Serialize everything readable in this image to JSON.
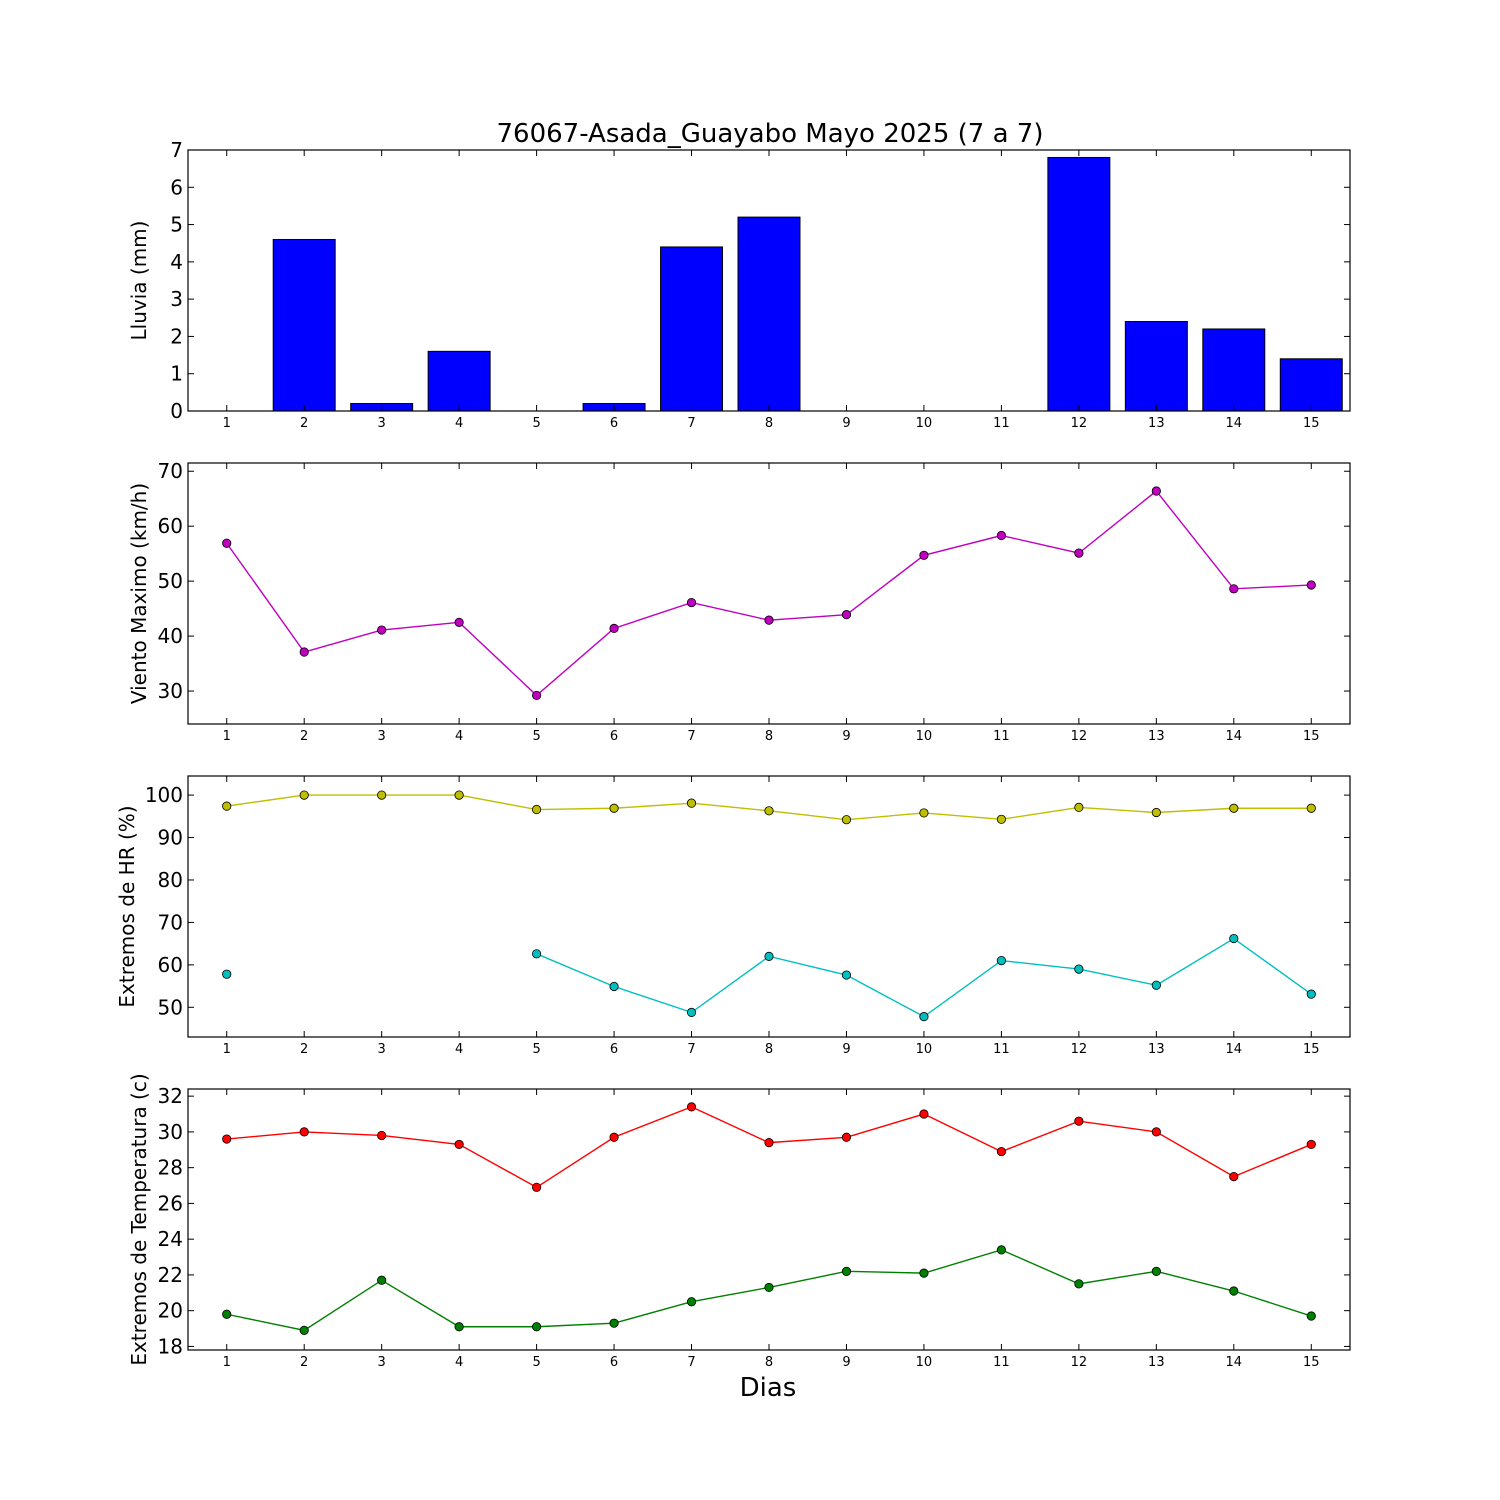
{
  "figure": {
    "title": "76067-Asada_Guayabo Mayo 2025  (7 a 7)",
    "xlabel": "Dias"
  },
  "chart_data": [
    {
      "type": "bar",
      "ylabel": "Lluvia (mm)",
      "categories": [
        1,
        2,
        3,
        4,
        5,
        6,
        7,
        8,
        9,
        10,
        11,
        12,
        13,
        14,
        15
      ],
      "values": [
        0,
        4.6,
        0.2,
        1.6,
        0,
        0.2,
        4.4,
        5.2,
        0,
        0,
        0,
        6.8,
        2.4,
        2.2,
        1.4
      ],
      "ylim": [
        0,
        7
      ],
      "yticks": [
        0,
        1,
        2,
        3,
        4,
        5,
        6,
        7
      ],
      "color": "#0000ff"
    },
    {
      "type": "line",
      "ylabel": "Viento Maximo (km/h)",
      "x": [
        1,
        2,
        3,
        4,
        5,
        6,
        7,
        8,
        9,
        10,
        11,
        12,
        13,
        14,
        15
      ],
      "series": [
        {
          "values": [
            56.9,
            37.1,
            41.1,
            42.5,
            29.2,
            41.4,
            46.1,
            42.9,
            43.9,
            54.7,
            58.3,
            55.1,
            66.4,
            48.6,
            49.3
          ],
          "color": "#bf00bf"
        }
      ],
      "ylim": [
        24,
        71.5
      ],
      "yticks": [
        30,
        40,
        50,
        60,
        70
      ]
    },
    {
      "type": "line",
      "ylabel": "Extremos de HR (%)",
      "x": [
        1,
        2,
        3,
        4,
        5,
        6,
        7,
        8,
        9,
        10,
        11,
        12,
        13,
        14,
        15
      ],
      "series": [
        {
          "values": [
            97.4,
            100,
            100,
            100,
            96.6,
            96.9,
            98.1,
            96.3,
            94.2,
            95.8,
            94.3,
            97.1,
            95.9,
            96.9,
            96.9
          ],
          "color": "#bfbf00"
        },
        {
          "values": [
            57.8,
            null,
            null,
            null,
            62.6,
            54.9,
            48.8,
            62,
            57.6,
            47.8,
            61,
            59,
            55.2,
            66.2,
            53.1
          ],
          "color": "#00bfbf"
        }
      ],
      "ylim": [
        43,
        104.5
      ],
      "yticks": [
        50,
        60,
        70,
        80,
        90,
        100
      ]
    },
    {
      "type": "line",
      "ylabel": "Extremos de Temperatura (c)",
      "x": [
        1,
        2,
        3,
        4,
        5,
        6,
        7,
        8,
        9,
        10,
        11,
        12,
        13,
        14,
        15
      ],
      "series": [
        {
          "values": [
            29.6,
            30,
            29.8,
            29.3,
            26.9,
            29.7,
            31.4,
            29.4,
            29.7,
            31,
            28.9,
            30.6,
            30,
            27.5,
            29.3
          ],
          "color": "#ff0000"
        },
        {
          "values": [
            19.8,
            18.9,
            21.7,
            19.1,
            19.1,
            19.3,
            20.5,
            21.3,
            22.2,
            22.1,
            23.4,
            21.5,
            22.2,
            21.1,
            19.7
          ],
          "color": "#008000"
        }
      ],
      "ylim": [
        17.8,
        32.4
      ],
      "yticks": [
        18,
        20,
        22,
        24,
        26,
        28,
        30,
        32
      ]
    }
  ]
}
